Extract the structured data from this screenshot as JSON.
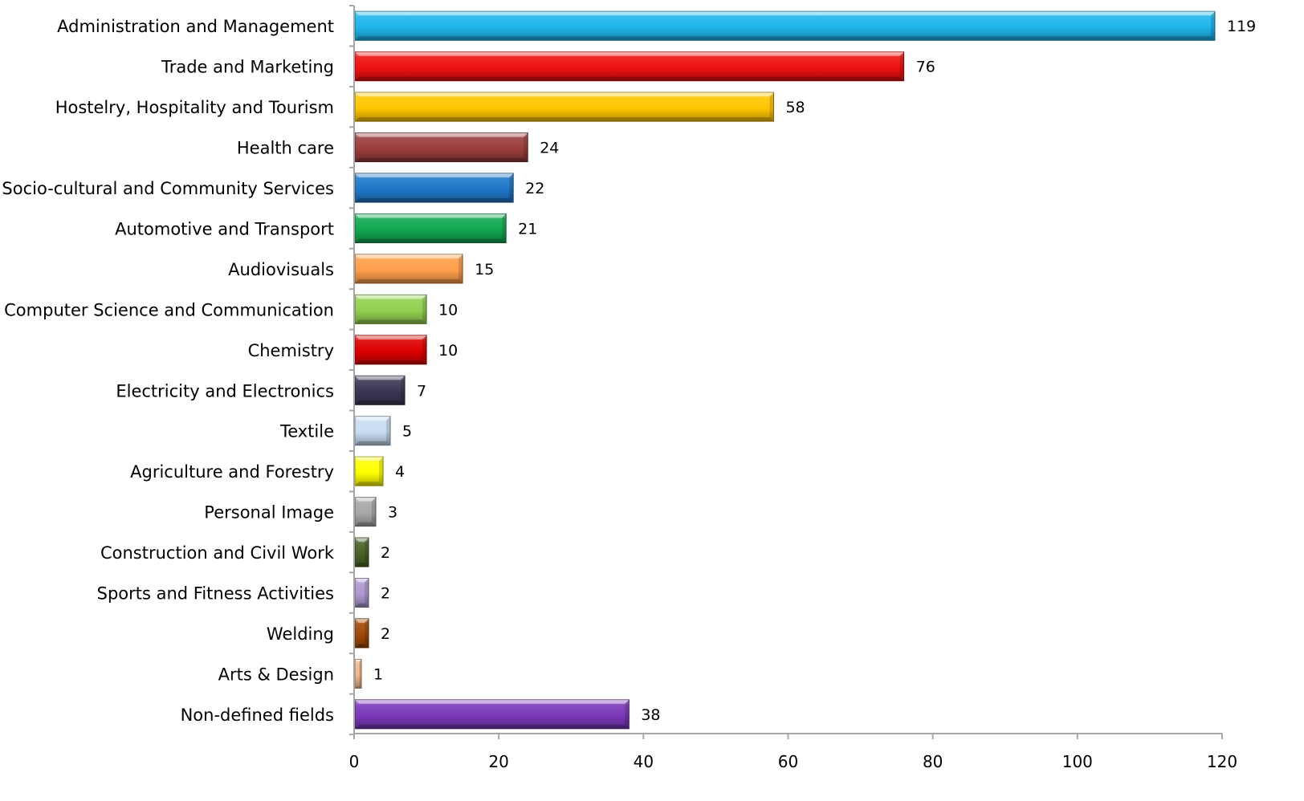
{
  "chart_data": {
    "type": "bar",
    "orientation": "horizontal",
    "title": "",
    "xlabel": "",
    "ylabel": "",
    "xlim": [
      0,
      120
    ],
    "x_ticks": [
      0,
      20,
      40,
      60,
      80,
      100,
      120
    ],
    "grid": false,
    "legend": "none",
    "categories": [
      "Administration and Management",
      "Trade and Marketing",
      "Hostelry, Hospitality and Tourism",
      "Health care",
      "Socio-cultural and Community Services",
      "Automotive and Transport",
      "Audiovisuals",
      "Computer Science and Communication",
      "Chemistry",
      "Electricity and Electronics",
      "Textile",
      "Agriculture and Forestry",
      "Personal Image",
      "Construction and Civil Work",
      "Sports and Fitness Activities",
      "Welding",
      "Arts & Design",
      "Non-defined fields"
    ],
    "values": [
      119,
      76,
      58,
      24,
      22,
      21,
      15,
      10,
      10,
      7,
      5,
      4,
      3,
      2,
      2,
      2,
      1,
      38
    ],
    "colors": [
      "#1FB6EC",
      "#EE1111",
      "#FFC600",
      "#9B3D3D",
      "#1F78C8",
      "#12A852",
      "#FF9E4A",
      "#92D050",
      "#DD0000",
      "#3C3654",
      "#C8DDF2",
      "#FFFF00",
      "#A8A8A8",
      "#4A6228",
      "#AE9AD0",
      "#A04A08",
      "#F2B88C",
      "#7A38B8"
    ],
    "axis_color": "#A6A6A6"
  }
}
